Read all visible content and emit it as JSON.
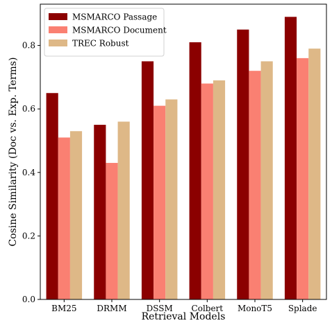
{
  "chart_data": {
    "type": "bar",
    "xlabel": "Retrieval Models",
    "ylabel": "Cosine Similarity (Doc vs. Exp. Terms)",
    "categories": [
      "BM25",
      "DRMM",
      "DSSM",
      "Colbert",
      "MonoT5",
      "Splade"
    ],
    "series": [
      {
        "name": "MSMARCO Passage",
        "color": "#8b0000",
        "values": [
          0.65,
          0.55,
          0.75,
          0.81,
          0.85,
          0.89
        ]
      },
      {
        "name": "MSMARCO Document",
        "color": "#fa8072",
        "values": [
          0.51,
          0.43,
          0.61,
          0.68,
          0.72,
          0.76
        ]
      },
      {
        "name": "TREC Robust",
        "color": "#deb887",
        "values": [
          0.53,
          0.56,
          0.63,
          0.69,
          0.75,
          0.79
        ]
      }
    ],
    "ylim": [
      0,
      0.93
    ],
    "yticks": [
      0.0,
      0.2,
      0.4,
      0.6,
      0.8
    ],
    "ytick_labels": [
      "0.0",
      "0.2",
      "0.4",
      "0.6",
      "0.8"
    ],
    "grid": false,
    "legend_position": "top-left"
  }
}
